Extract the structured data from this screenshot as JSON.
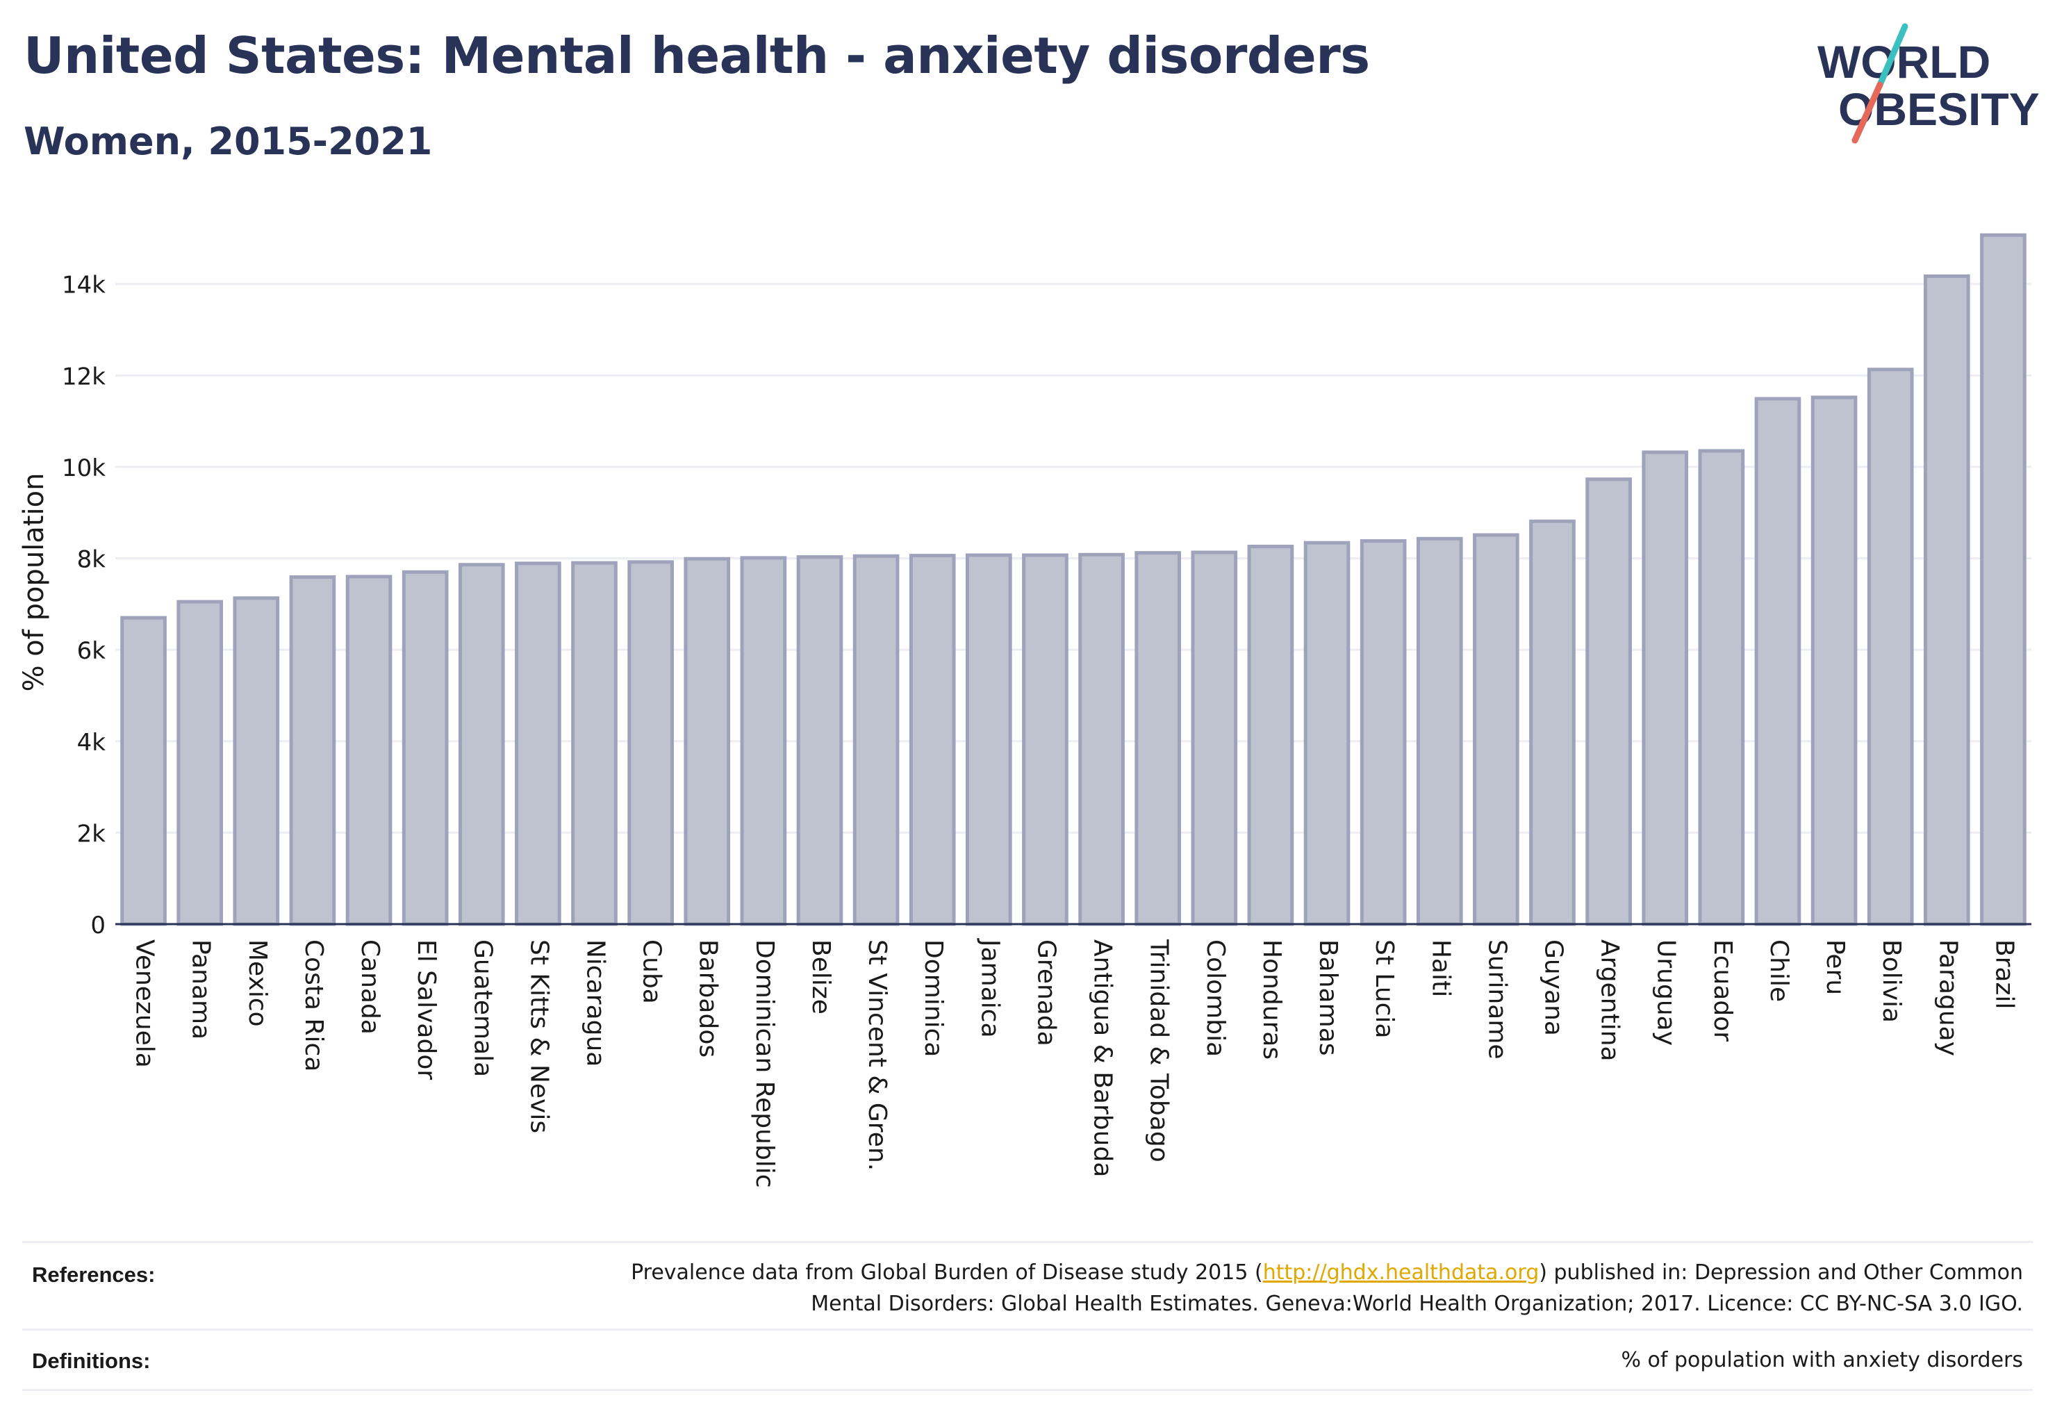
{
  "header": {
    "title": "United States: Mental health - anxiety disorders",
    "subtitle": "Women, 2015-2021"
  },
  "logo": {
    "line1": "WORLD",
    "line2": "OBESITY",
    "slash_top_color": "#3cbfbf",
    "slash_bottom_color": "#e5685a"
  },
  "colors": {
    "bar_fill": "#bfc2cf",
    "bar_stroke": "#9ea3bb",
    "text": "#283357",
    "grid": "#eceef3",
    "link": "#e0a800"
  },
  "chart_data": {
    "type": "bar",
    "ylabel": "% of population",
    "ylim": [
      0,
      15500
    ],
    "yticks": [
      0,
      2000,
      4000,
      6000,
      8000,
      10000,
      12000,
      14000
    ],
    "ytick_labels": [
      "0",
      "2k",
      "4k",
      "6k",
      "8k",
      "10k",
      "12k",
      "14k"
    ],
    "grid": true,
    "categories": [
      "Venezuela",
      "Panama",
      "Mexico",
      "Costa Rica",
      "Canada",
      "El Salvador",
      "Guatemala",
      "St Kitts & Nevis",
      "Nicaragua",
      "Cuba",
      "Barbados",
      "Dominican Republic",
      "Belize",
      "St Vincent & Gren.",
      "Dominica",
      "Jamaica",
      "Grenada",
      "Antigua & Barbuda",
      "Trinidad & Tobago",
      "Colombia",
      "Honduras",
      "Bahamas",
      "St Lucia",
      "Haiti",
      "Suriname",
      "Guyana",
      "Argentina",
      "Uruguay",
      "Ecuador",
      "Chile",
      "Peru",
      "Bolivia",
      "Paraguay",
      "Brazil"
    ],
    "values": [
      6700,
      7050,
      7130,
      7590,
      7600,
      7700,
      7860,
      7890,
      7900,
      7920,
      7990,
      8010,
      8030,
      8050,
      8060,
      8070,
      8070,
      8080,
      8120,
      8130,
      8260,
      8340,
      8380,
      8430,
      8510,
      8810,
      9730,
      10320,
      10350,
      11490,
      11520,
      12130,
      14170,
      15070
    ]
  },
  "footer": {
    "references_label": "References:",
    "references_line1_pre": "Prevalence data from Global Burden of Disease study 2015 (",
    "references_link": "http://ghdx.healthdata.org",
    "references_line1_post": ") published in: Depression and Other Common",
    "references_line2": "Mental Disorders: Global Health Estimates. Geneva:World Health Organization; 2017. Licence: CC BY-NC-SA 3.0 IGO.",
    "definitions_label": "Definitions:",
    "definitions_text": "% of population with anxiety disorders"
  }
}
